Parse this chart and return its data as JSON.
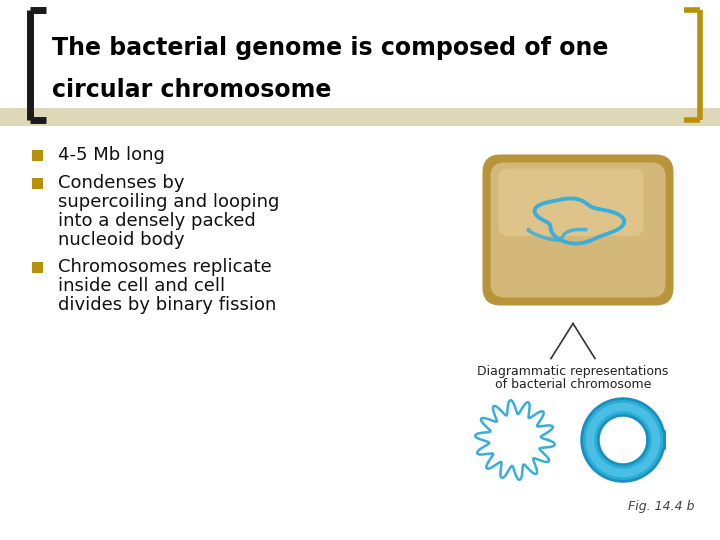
{
  "title_line1": "The bacterial genome is composed of one",
  "title_line2": "circular chromosome",
  "bullet1": "4-5 Mb long",
  "bullet2_line1": "Condenses by",
  "bullet2_line2": "supercoiling and looping",
  "bullet2_line3": "into a densely packed",
  "bullet2_line4": "nucleoid body",
  "bullet3_line1": "Chromosomes replicate",
  "bullet3_line2": "inside cell and cell",
  "bullet3_line3": "divides by binary fission",
  "caption_line1": "Diagrammatic representations",
  "caption_line2": "of bacterial chromosome",
  "fig_label": "Fig. 14.4 b",
  "bg_color": "#ffffff",
  "title_color": "#000000",
  "bullet_color": "#111111",
  "bullet_square_color": "#b8900a",
  "bracket_color": "#1a1a1a",
  "title_stripe_color": "#ddd9b8",
  "diagram_line_color": "#3aaed8",
  "diagram_line_color2": "#1a8fbf",
  "cell_fill_color": "#c8aa72",
  "cell_outline_color": "#a08040"
}
